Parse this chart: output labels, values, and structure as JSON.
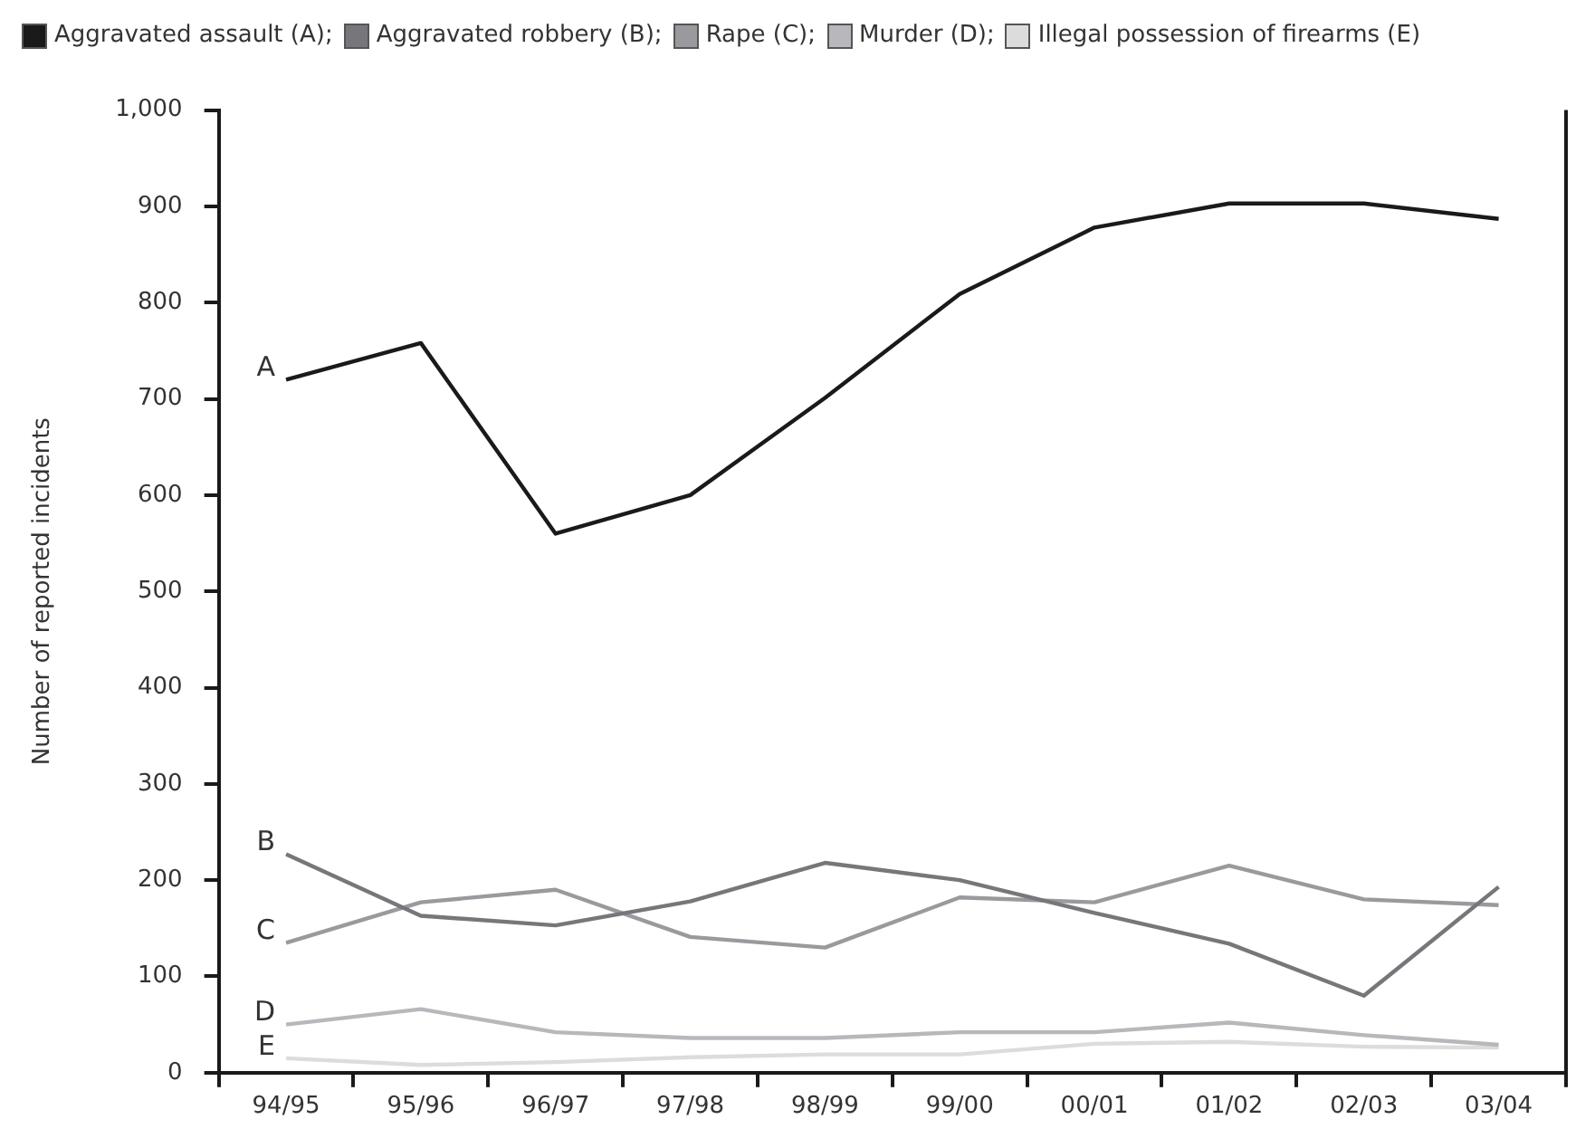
{
  "chart_data": {
    "type": "line",
    "ylabel": "Number of reported incidents",
    "categories": [
      "94/95",
      "95/96",
      "96/97",
      "97/98",
      "98/99",
      "99/00",
      "00/01",
      "01/02",
      "02/03",
      "03/04"
    ],
    "series": [
      {
        "name": "Aggravated assault (A);",
        "color": "#1a1a1a",
        "values": [
          720,
          758,
          560,
          600,
          701,
          809,
          878,
          903,
          903,
          887
        ]
      },
      {
        "name": "Aggravated robbery (B);",
        "color": "#77777b",
        "values": [
          227,
          163,
          153,
          178,
          218,
          200,
          166,
          134,
          80,
          193
        ]
      },
      {
        "name": "Rape (C);",
        "color": "#9a9a9e",
        "values": [
          135,
          177,
          190,
          141,
          130,
          182,
          177,
          215,
          180,
          174
        ]
      },
      {
        "name": "Murder (D);",
        "color": "#b8b8bc",
        "values": [
          50,
          66,
          42,
          36,
          36,
          42,
          42,
          52,
          39,
          29
        ]
      },
      {
        "name": "Illegal possession of firearms (E)",
        "color": "#dcdcdc",
        "values": [
          15,
          8,
          11,
          16,
          19,
          19,
          30,
          32,
          27,
          26
        ]
      }
    ],
    "ylim": [
      0,
      1000
    ],
    "yticks": [
      0,
      100,
      200,
      300,
      400,
      500,
      600,
      700,
      800,
      900,
      {
        "value": 1000,
        "label": "1,000"
      }
    ],
    "grid": false,
    "legend": "top left",
    "marker": "none",
    "line_style": "solid",
    "annotations": [
      {
        "text": "A",
        "x": "94/95",
        "y": 720
      },
      {
        "text": "B",
        "x": "94/95",
        "y": 227
      },
      {
        "text": "C",
        "x": "94/95",
        "y": 135
      },
      {
        "text": "D",
        "x": "94/95",
        "y": 50
      },
      {
        "text": "E",
        "x": "94/95",
        "y": 15
      }
    ]
  }
}
